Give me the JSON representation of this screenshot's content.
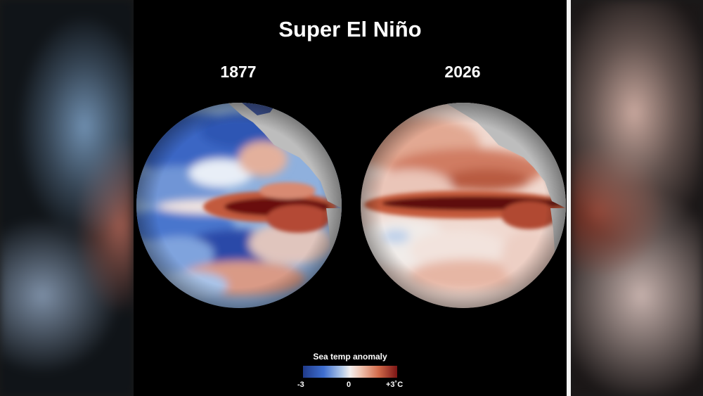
{
  "title": "Super El Niño",
  "maps": [
    {
      "year": "1877",
      "tint": "cool"
    },
    {
      "year": "2026",
      "tint": "warm"
    }
  ],
  "legend": {
    "title": "Sea temp anomaly",
    "min_label": "-3",
    "mid_label": "0",
    "max_label": "+3˚C"
  },
  "colors": {
    "cold": "#2a4fb0",
    "neutral": "#f3efee",
    "warm": "#c45a3a",
    "hot": "#5e0c0c",
    "land": "#bdbdbd"
  }
}
